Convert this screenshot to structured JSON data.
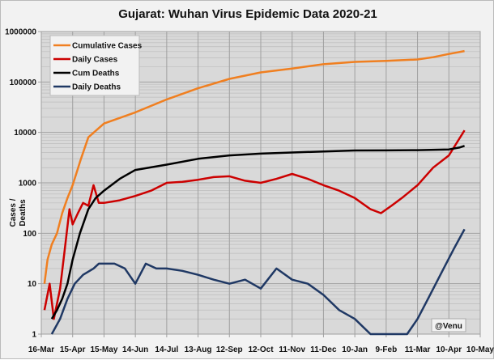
{
  "chart_data": {
    "type": "line",
    "title": "Gujarat: Wuhan Virus Epidemic Data 2020-21",
    "xlabel": "",
    "ylabel": "Cases / Deaths",
    "yscale": "log",
    "ylim": [
      1,
      1000000
    ],
    "xlim_days": [
      0,
      420
    ],
    "x_unit": "days since 16-Mar-2020",
    "xticks": [
      "16-Mar",
      "15-Apr",
      "15-May",
      "14-Jun",
      "14-Jul",
      "13-Aug",
      "12-Sep",
      "12-Oct",
      "11-Nov",
      "11-Dec",
      "10-Jan",
      "9-Feb",
      "11-Mar",
      "10-Apr",
      "10-May"
    ],
    "yticks": [
      "1",
      "10",
      "100",
      "1000",
      "10000",
      "100000",
      "1000000"
    ],
    "legend_position": "top-left",
    "annotation": "@Venu",
    "series": [
      {
        "name": "Cumulative Cases",
        "color": "#f07f20",
        "x": [
          3,
          6,
          10,
          15,
          20,
          25,
          30,
          38,
          45,
          60,
          90,
          120,
          150,
          180,
          210,
          240,
          270,
          300,
          330,
          360,
          375,
          390,
          405
        ],
        "y": [
          10,
          30,
          60,
          100,
          250,
          500,
          900,
          3000,
          8000,
          15000,
          25000,
          45000,
          75000,
          115000,
          155000,
          185000,
          225000,
          250000,
          262000,
          280000,
          310000,
          360000,
          410000
        ]
      },
      {
        "name": "Daily Cases",
        "color": "#cc0000",
        "x": [
          3,
          8,
          12,
          18,
          22,
          27,
          30,
          35,
          40,
          45,
          50,
          55,
          60,
          75,
          90,
          105,
          120,
          135,
          150,
          165,
          180,
          195,
          210,
          225,
          240,
          255,
          270,
          285,
          300,
          315,
          325,
          335,
          345,
          360,
          375,
          390,
          405
        ],
        "y": [
          3,
          10,
          2,
          8,
          40,
          300,
          150,
          250,
          400,
          350,
          900,
          400,
          400,
          450,
          550,
          700,
          1000,
          1050,
          1150,
          1300,
          1350,
          1100,
          1000,
          1200,
          1500,
          1200,
          900,
          700,
          500,
          300,
          250,
          350,
          500,
          900,
          2000,
          3500,
          11000
        ]
      },
      {
        "name": "Cum Deaths",
        "color": "#000000",
        "x": [
          10,
          15,
          20,
          25,
          30,
          37,
          45,
          52,
          60,
          75,
          90,
          120,
          150,
          180,
          210,
          240,
          270,
          300,
          330,
          360,
          390,
          400,
          405
        ],
        "y": [
          2,
          3,
          5,
          10,
          30,
          100,
          300,
          500,
          700,
          1200,
          1800,
          2300,
          3000,
          3500,
          3800,
          4000,
          4200,
          4380,
          4400,
          4450,
          4600,
          5000,
          5400
        ]
      },
      {
        "name": "Daily Deaths",
        "color": "#1f3864",
        "x": [
          10,
          18,
          25,
          32,
          40,
          50,
          55,
          70,
          80,
          90,
          100,
          110,
          120,
          135,
          150,
          165,
          180,
          195,
          210,
          225,
          240,
          255,
          270,
          285,
          300,
          315,
          330,
          350,
          360,
          370,
          385,
          395,
          405
        ],
        "y": [
          1,
          2,
          5,
          10,
          15,
          20,
          25,
          25,
          20,
          10,
          25,
          20,
          20,
          18,
          15,
          12,
          10,
          12,
          8,
          20,
          12,
          10,
          6,
          3,
          2,
          1,
          1,
          1,
          2,
          5,
          20,
          50,
          120
        ]
      }
    ]
  }
}
